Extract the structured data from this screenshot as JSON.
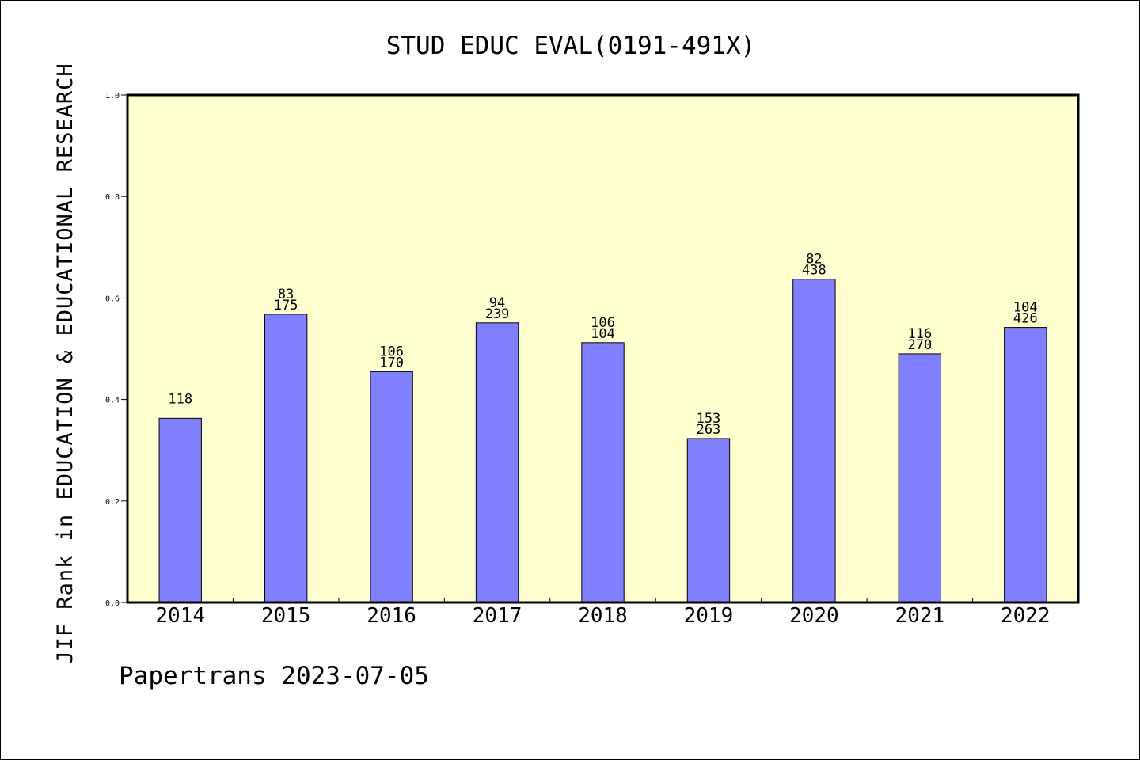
{
  "chart_data": {
    "type": "bar",
    "title": "STUD EDUC EVAL(0191-491X)",
    "xlabel": "",
    "ylabel": "JIF Rank in EDUCATION & EDUCATIONAL RESEARCH",
    "ylim": [
      0.0,
      1.0
    ],
    "yticks": [
      "0.0",
      "0.2",
      "0.4",
      "0.6",
      "0.8",
      "1.0"
    ],
    "categories": [
      "2014",
      "2015",
      "2016",
      "2017",
      "2018",
      "2019",
      "2020",
      "2021",
      "2022"
    ],
    "values": [
      0.363,
      0.568,
      0.455,
      0.551,
      0.512,
      0.323,
      0.637,
      0.49,
      0.542
    ],
    "bar_labels": [
      [
        "118"
      ],
      [
        "83",
        "175"
      ],
      [
        "106",
        "170"
      ],
      [
        "94",
        "239"
      ],
      [
        "106",
        "104"
      ],
      [
        "153",
        "263"
      ],
      [
        "82",
        "438"
      ],
      [
        "116",
        "270"
      ],
      [
        "104",
        "426"
      ]
    ],
    "grid": false,
    "legend": "none",
    "colors": {
      "plot_background": "#ffffd0",
      "bar_fill": "#8080ff",
      "bar_edge": "#000000"
    }
  },
  "footer": {
    "text": "Papertrans 2023-07-05"
  }
}
